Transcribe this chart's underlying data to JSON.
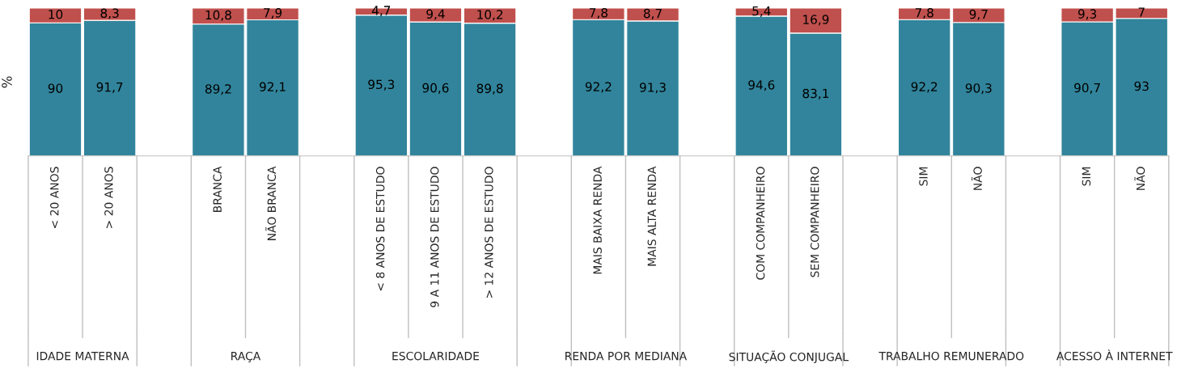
{
  "chart_data": {
    "type": "bar",
    "stacked": true,
    "ylabel": "%",
    "tick_labels": "x",
    "categories": [
      "< 20 ANOS",
      "> 20 ANOS",
      null,
      "BRANCA",
      "NÃO BRANCA",
      null,
      "< 8 ANOS DE ESTUDO",
      "9 A 11 ANOS DE ESTUDO",
      "> 12 ANOS DE ESTUDO",
      null,
      "MAIS BAIXA RENDA",
      "MAIS ALTA RENDA",
      null,
      "COM COMPANHEIRO",
      "SEM COMPANHEIRO",
      null,
      "SIM",
      "NÃO",
      null,
      "SIM",
      "NÃO"
    ],
    "series": [
      {
        "color": "#31849b",
        "values": [
          90,
          91.7,
          null,
          89.2,
          92.1,
          null,
          95.3,
          90.6,
          89.8,
          null,
          92.2,
          91.3,
          null,
          94.6,
          83.1,
          null,
          92.2,
          90.3,
          null,
          90.7,
          93
        ],
        "value_labels": [
          "90",
          "91,7",
          null,
          "89,2",
          "92,1",
          null,
          "95,3",
          "90,6",
          "89,8",
          null,
          "92,2",
          "91,3",
          null,
          "94,6",
          "83,1",
          null,
          "92,2",
          "90,3",
          null,
          "90,7",
          "93"
        ]
      },
      {
        "color": "#c0504d",
        "values": [
          10,
          8.3,
          null,
          10.8,
          7.9,
          null,
          4.7,
          9.4,
          10.2,
          null,
          7.8,
          8.7,
          null,
          5.4,
          16.9,
          null,
          7.8,
          9.7,
          null,
          9.3,
          7
        ],
        "value_labels": [
          "10",
          "8,3",
          null,
          "10,8",
          "7,9",
          null,
          "4,7",
          "9,4",
          "10,2",
          null,
          "7,8",
          "8,7",
          null,
          "5,4",
          "16,9",
          null,
          "7,8",
          "9,7",
          null,
          "9,3",
          "7"
        ]
      }
    ],
    "annotations": [
      "IDADE MATERNA",
      "RAÇA",
      "ESCOLARIDADE",
      "RENDA POR MEDIANA",
      "SITUAÇÃO CONJUGAL",
      "TRABALHO REMUNERADO",
      "ACESSO À INTERNET"
    ]
  }
}
